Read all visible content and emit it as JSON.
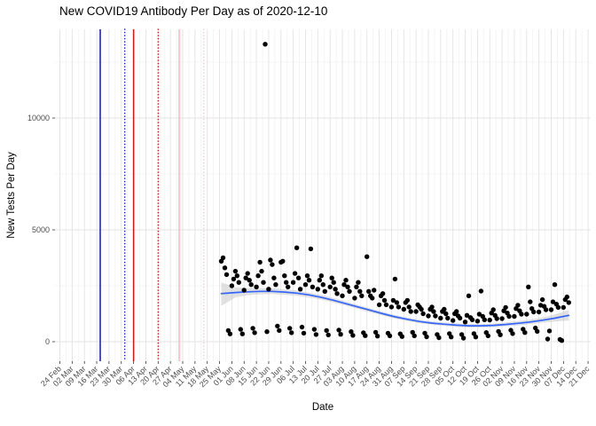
{
  "title": "New COVID19 Antibody Per Day as of 2020-12-10",
  "chart_data": {
    "type": "scatter",
    "title": "New COVID19 Antibody Per Day as of 2020-12-10",
    "xlabel": "Date",
    "ylabel": "New Tests Per Day",
    "legend": "none",
    "grid": "on",
    "point_color": "#000000",
    "smooth_color": "#3366ff",
    "ribbon_color": "#c4c4c4",
    "x_axis": {
      "start_date": "2020-02-24",
      "end_date": "2020-12-21",
      "tick_interval_days": 7,
      "tick_labels": [
        "24 Feb",
        "02 Mar",
        "09 Mar",
        "16 Mar",
        "23 Mar",
        "30 Mar",
        "06 Apr",
        "13 Apr",
        "20 Apr",
        "27 Apr",
        "04 May",
        "11 May",
        "18 May",
        "25 May",
        "01 Jun",
        "08 Jun",
        "15 Jun",
        "22 Jun",
        "29 Jun",
        "06 Jul",
        "13 Jul",
        "20 Jul",
        "27 Jul",
        "03 Aug",
        "10 Aug",
        "17 Aug",
        "24 Aug",
        "31 Aug",
        "07 Sep",
        "14 Sep",
        "21 Sep",
        "28 Sep",
        "05 Oct",
        "12 Oct",
        "19 Oct",
        "26 Oct",
        "02 Nov",
        "09 Nov",
        "16 Nov",
        "23 Nov",
        "30 Nov",
        "07 Dec",
        "14 Dec",
        "21 Dec"
      ]
    },
    "y_axis": {
      "ticks": [
        0,
        5000,
        10000
      ],
      "tick_labels": [
        "0",
        "5000",
        "10000"
      ],
      "minor_ticks": [
        2500,
        7500,
        12500
      ],
      "range": [
        -870,
        13970
      ]
    },
    "vlines": [
      {
        "date": "2020-03-18",
        "color": "#1212cf",
        "style": "solid"
      },
      {
        "date": "2020-04-01",
        "color": "#1212cf",
        "style": "dotted"
      },
      {
        "date": "2020-04-06",
        "color": "#e01212",
        "style": "solid"
      },
      {
        "date": "2020-04-20",
        "color": "#e01212",
        "style": "dotted"
      },
      {
        "date": "2020-05-02",
        "color": "#ffb3bc",
        "style": "solid"
      },
      {
        "date": "2020-05-16",
        "color": "#ffc2c9",
        "style": "dotted"
      }
    ],
    "smooth": {
      "name": "loess-fit-with-confidence-band",
      "values": [
        [
          "2020-05-26",
          2150,
          1600,
          2650
        ],
        [
          "2020-06-03",
          2200,
          1980,
          2430
        ],
        [
          "2020-06-10",
          2230,
          2080,
          2400
        ],
        [
          "2020-06-17",
          2250,
          2120,
          2390
        ],
        [
          "2020-06-24",
          2250,
          2130,
          2380
        ],
        [
          "2020-07-01",
          2220,
          2100,
          2340
        ],
        [
          "2020-07-08",
          2170,
          2060,
          2290
        ],
        [
          "2020-07-15",
          2090,
          1980,
          2200
        ],
        [
          "2020-07-22",
          1980,
          1880,
          2090
        ],
        [
          "2020-07-29",
          1850,
          1750,
          1950
        ],
        [
          "2020-08-05",
          1700,
          1610,
          1800
        ],
        [
          "2020-08-12",
          1550,
          1460,
          1640
        ],
        [
          "2020-08-19",
          1400,
          1310,
          1490
        ],
        [
          "2020-08-26",
          1250,
          1170,
          1340
        ],
        [
          "2020-09-02",
          1110,
          1030,
          1190
        ],
        [
          "2020-09-09",
          1000,
          920,
          1080
        ],
        [
          "2020-09-16",
          900,
          830,
          980
        ],
        [
          "2020-09-23",
          830,
          760,
          910
        ],
        [
          "2020-09-30",
          780,
          710,
          860
        ],
        [
          "2020-10-07",
          740,
          660,
          820
        ],
        [
          "2020-10-14",
          710,
          630,
          790
        ],
        [
          "2020-10-21",
          710,
          630,
          790
        ],
        [
          "2020-10-28",
          730,
          650,
          810
        ],
        [
          "2020-11-04",
          770,
          690,
          860
        ],
        [
          "2020-11-11",
          820,
          730,
          920
        ],
        [
          "2020-11-18",
          880,
          780,
          990
        ],
        [
          "2020-11-25",
          960,
          850,
          1080
        ],
        [
          "2020-12-02",
          1050,
          900,
          1220
        ],
        [
          "2020-12-10",
          1180,
          950,
          1420
        ]
      ]
    },
    "points": [
      [
        "2020-05-26",
        3600
      ],
      [
        "2020-05-27",
        3750
      ],
      [
        "2020-05-28",
        3300
      ],
      [
        "2020-05-29",
        3000
      ],
      [
        "2020-05-30",
        500
      ],
      [
        "2020-05-31",
        350
      ],
      [
        "2020-06-01",
        2500
      ],
      [
        "2020-06-02",
        2800
      ],
      [
        "2020-06-03",
        3150
      ],
      [
        "2020-06-04",
        2950
      ],
      [
        "2020-06-05",
        2650
      ],
      [
        "2020-06-06",
        550
      ],
      [
        "2020-06-07",
        350
      ],
      [
        "2020-06-08",
        2300
      ],
      [
        "2020-06-09",
        2850
      ],
      [
        "2020-06-10",
        3050
      ],
      [
        "2020-06-11",
        2750
      ],
      [
        "2020-06-12",
        2550
      ],
      [
        "2020-06-13",
        600
      ],
      [
        "2020-06-14",
        400
      ],
      [
        "2020-06-15",
        2450
      ],
      [
        "2020-06-16",
        2950
      ],
      [
        "2020-06-17",
        3550
      ],
      [
        "2020-06-18",
        3150
      ],
      [
        "2020-06-19",
        2650
      ],
      [
        "2020-06-20",
        13300
      ],
      [
        "2020-06-21",
        450
      ],
      [
        "2020-06-22",
        2350
      ],
      [
        "2020-06-23",
        3650
      ],
      [
        "2020-06-24",
        3450
      ],
      [
        "2020-06-25",
        2850
      ],
      [
        "2020-06-26",
        2550
      ],
      [
        "2020-06-27",
        700
      ],
      [
        "2020-06-28",
        500
      ],
      [
        "2020-06-29",
        3550
      ],
      [
        "2020-06-30",
        3600
      ],
      [
        "2020-07-01",
        2950
      ],
      [
        "2020-07-02",
        2650
      ],
      [
        "2020-07-03",
        2450
      ],
      [
        "2020-07-04",
        600
      ],
      [
        "2020-07-05",
        400
      ],
      [
        "2020-07-06",
        2650
      ],
      [
        "2020-07-07",
        3050
      ],
      [
        "2020-07-08",
        4200
      ],
      [
        "2020-07-09",
        2850
      ],
      [
        "2020-07-10",
        2350
      ],
      [
        "2020-07-11",
        650
      ],
      [
        "2020-07-12",
        380
      ],
      [
        "2020-07-13",
        2550
      ],
      [
        "2020-07-14",
        2950
      ],
      [
        "2020-07-15",
        2750
      ],
      [
        "2020-07-16",
        4150
      ],
      [
        "2020-07-17",
        2450
      ],
      [
        "2020-07-18",
        550
      ],
      [
        "2020-07-19",
        320
      ],
      [
        "2020-07-20",
        2350
      ],
      [
        "2020-07-21",
        2750
      ],
      [
        "2020-07-22",
        2950
      ],
      [
        "2020-07-23",
        2550
      ],
      [
        "2020-07-24",
        2250
      ],
      [
        "2020-07-25",
        500
      ],
      [
        "2020-07-26",
        300
      ],
      [
        "2020-07-27",
        2450
      ],
      [
        "2020-07-28",
        2850
      ],
      [
        "2020-07-29",
        2650
      ],
      [
        "2020-07-30",
        2350
      ],
      [
        "2020-07-31",
        2150
      ],
      [
        "2020-08-01",
        520
      ],
      [
        "2020-08-02",
        330
      ],
      [
        "2020-08-03",
        2050
      ],
      [
        "2020-08-04",
        2550
      ],
      [
        "2020-08-05",
        2750
      ],
      [
        "2020-08-06",
        2450
      ],
      [
        "2020-08-07",
        2250
      ],
      [
        "2020-08-08",
        450
      ],
      [
        "2020-08-09",
        280
      ],
      [
        "2020-08-10",
        1950
      ],
      [
        "2020-08-11",
        2450
      ],
      [
        "2020-08-12",
        2650
      ],
      [
        "2020-08-13",
        2250
      ],
      [
        "2020-08-14",
        2050
      ],
      [
        "2020-08-15",
        400
      ],
      [
        "2020-08-16",
        270
      ],
      [
        "2020-08-17",
        3800
      ],
      [
        "2020-08-18",
        2250
      ],
      [
        "2020-08-19",
        2050
      ],
      [
        "2020-08-20",
        1950
      ],
      [
        "2020-08-21",
        2300
      ],
      [
        "2020-08-22",
        420
      ],
      [
        "2020-08-23",
        250
      ],
      [
        "2020-08-24",
        1650
      ],
      [
        "2020-08-25",
        2050
      ],
      [
        "2020-08-26",
        2150
      ],
      [
        "2020-08-27",
        1850
      ],
      [
        "2020-08-28",
        1650
      ],
      [
        "2020-08-29",
        380
      ],
      [
        "2020-08-30",
        260
      ],
      [
        "2020-08-31",
        1550
      ],
      [
        "2020-09-01",
        1850
      ],
      [
        "2020-09-02",
        2800
      ],
      [
        "2020-09-03",
        1750
      ],
      [
        "2020-09-04",
        1550
      ],
      [
        "2020-09-05",
        350
      ],
      [
        "2020-09-06",
        230
      ],
      [
        "2020-09-07",
        1450
      ],
      [
        "2020-09-08",
        1750
      ],
      [
        "2020-09-09",
        1850
      ],
      [
        "2020-09-10",
        1550
      ],
      [
        "2020-09-11",
        1350
      ],
      [
        "2020-09-12",
        420
      ],
      [
        "2020-09-13",
        260
      ],
      [
        "2020-09-14",
        1350
      ],
      [
        "2020-09-15",
        1650
      ],
      [
        "2020-09-16",
        1550
      ],
      [
        "2020-09-17",
        1450
      ],
      [
        "2020-09-18",
        1250
      ],
      [
        "2020-09-19",
        380
      ],
      [
        "2020-09-20",
        220
      ],
      [
        "2020-09-21",
        1150
      ],
      [
        "2020-09-22",
        1450
      ],
      [
        "2020-09-23",
        1550
      ],
      [
        "2020-09-24",
        1350
      ],
      [
        "2020-09-25",
        1150
      ],
      [
        "2020-09-26",
        320
      ],
      [
        "2020-09-27",
        180
      ],
      [
        "2020-09-28",
        1050
      ],
      [
        "2020-09-29",
        1350
      ],
      [
        "2020-09-30",
        1450
      ],
      [
        "2020-10-01",
        1250
      ],
      [
        "2020-10-02",
        1050
      ],
      [
        "2020-10-03",
        360
      ],
      [
        "2020-10-04",
        210
      ],
      [
        "2020-10-05",
        950
      ],
      [
        "2020-10-06",
        1250
      ],
      [
        "2020-10-07",
        1350
      ],
      [
        "2020-10-08",
        1150
      ],
      [
        "2020-10-09",
        1050
      ],
      [
        "2020-10-10",
        320
      ],
      [
        "2020-10-11",
        160
      ],
      [
        "2020-10-12",
        880
      ],
      [
        "2020-10-13",
        1180
      ],
      [
        "2020-10-14",
        2050
      ],
      [
        "2020-10-15",
        1080
      ],
      [
        "2020-10-16",
        980
      ],
      [
        "2020-10-17",
        360
      ],
      [
        "2020-10-18",
        210
      ],
      [
        "2020-10-19",
        920
      ],
      [
        "2020-10-20",
        1230
      ],
      [
        "2020-10-21",
        2260
      ],
      [
        "2020-10-22",
        1130
      ],
      [
        "2020-10-23",
        980
      ],
      [
        "2020-10-24",
        410
      ],
      [
        "2020-10-25",
        260
      ],
      [
        "2020-10-26",
        970
      ],
      [
        "2020-10-27",
        1280
      ],
      [
        "2020-10-28",
        1430
      ],
      [
        "2020-10-29",
        1180
      ],
      [
        "2020-10-30",
        1030
      ],
      [
        "2020-10-31",
        460
      ],
      [
        "2020-11-01",
        310
      ],
      [
        "2020-11-02",
        1030
      ],
      [
        "2020-11-03",
        1380
      ],
      [
        "2020-11-04",
        1530
      ],
      [
        "2020-11-05",
        1280
      ],
      [
        "2020-11-06",
        1130
      ],
      [
        "2020-11-07",
        510
      ],
      [
        "2020-11-08",
        360
      ],
      [
        "2020-11-09",
        1130
      ],
      [
        "2020-11-10",
        1480
      ],
      [
        "2020-11-11",
        1630
      ],
      [
        "2020-11-12",
        1380
      ],
      [
        "2020-11-13",
        1230
      ],
      [
        "2020-11-14",
        560
      ],
      [
        "2020-11-15",
        410
      ],
      [
        "2020-11-16",
        1230
      ],
      [
        "2020-11-17",
        2450
      ],
      [
        "2020-11-18",
        1780
      ],
      [
        "2020-11-19",
        1480
      ],
      [
        "2020-11-20",
        1330
      ],
      [
        "2020-11-21",
        610
      ],
      [
        "2020-11-22",
        460
      ],
      [
        "2020-11-23",
        1330
      ],
      [
        "2020-11-24",
        1630
      ],
      [
        "2020-11-25",
        1880
      ],
      [
        "2020-11-26",
        1580
      ],
      [
        "2020-11-27",
        1430
      ],
      [
        "2020-11-28",
        120
      ],
      [
        "2020-11-29",
        480
      ],
      [
        "2020-11-30",
        1430
      ],
      [
        "2020-12-01",
        1780
      ],
      [
        "2020-12-02",
        2550
      ],
      [
        "2020-12-03",
        1680
      ],
      [
        "2020-12-04",
        1530
      ],
      [
        "2020-12-05",
        100
      ],
      [
        "2020-12-06",
        50
      ],
      [
        "2020-12-07",
        1530
      ],
      [
        "2020-12-08",
        1880
      ],
      [
        "2020-12-09",
        2000
      ],
      [
        "2020-12-10",
        1750
      ]
    ]
  }
}
